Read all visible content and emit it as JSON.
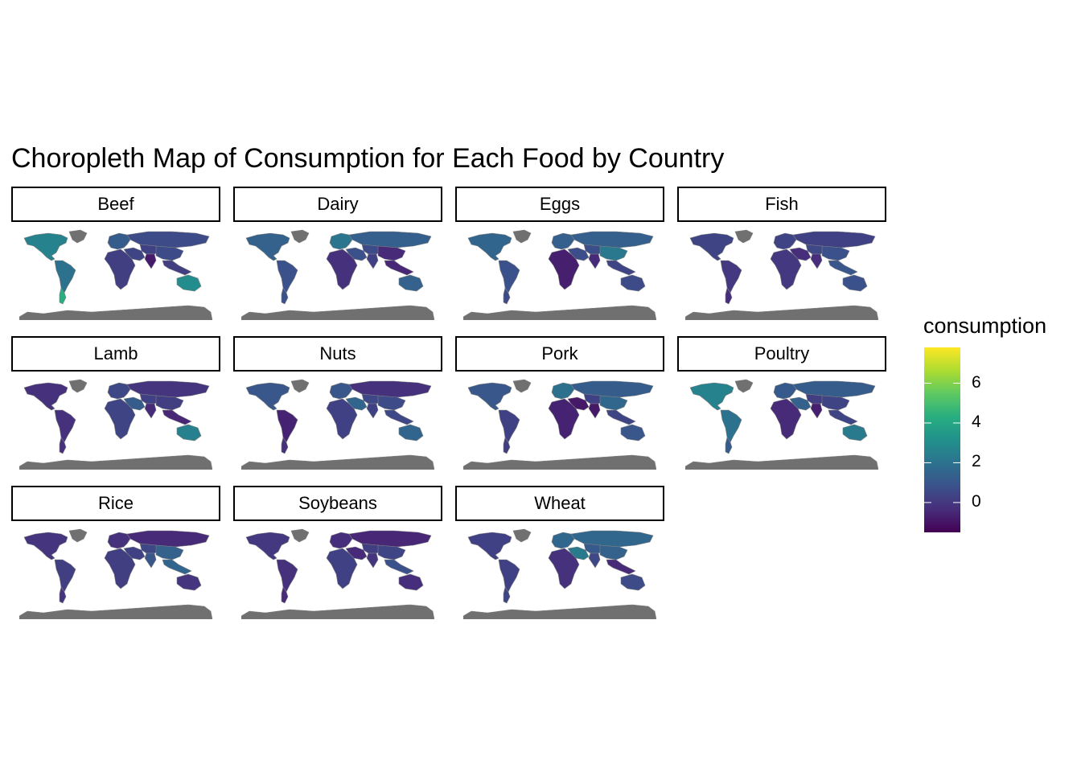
{
  "title": "Choropleth Map of Consumption for Each Food by Country",
  "chart_data": {
    "type": "choropleth-facet",
    "facets": [
      "Beef",
      "Dairy",
      "Eggs",
      "Fish",
      "Lamb",
      "Nuts",
      "Pork",
      "Poultry",
      "Rice",
      "Soybeans",
      "Wheat"
    ],
    "legend": {
      "title": "consumption",
      "ticks": [
        6,
        4,
        2,
        0
      ],
      "range": [
        -1.5,
        7.8
      ],
      "colors": [
        "#440154",
        "#472d7b",
        "#3b528b",
        "#2c728e",
        "#21918c",
        "#28ae80",
        "#5ec962",
        "#addc30",
        "#fde725"
      ]
    },
    "na_color": "#707070",
    "regions": {
      "Beef": {
        "north_america": 2.6,
        "south_america": 2.0,
        "argentina": 4.3,
        "europe": 1.2,
        "russia": 0.6,
        "africa": 0.2,
        "middle_east": 0.4,
        "asia": 0.3,
        "china": 0.6,
        "india": -0.8,
        "southeast_asia": 0.2,
        "australia": 3.0
      },
      "Dairy": {
        "north_america": 1.4,
        "south_america": 0.8,
        "argentina": 0.8,
        "europe": 2.1,
        "russia": 1.3,
        "africa": -0.2,
        "middle_east": 0.8,
        "asia": 0.6,
        "china": -0.4,
        "india": 0.3,
        "southeast_asia": -0.5,
        "australia": 1.4
      },
      "Eggs": {
        "north_america": 1.5,
        "south_america": 0.8,
        "argentina": 0.6,
        "europe": 1.3,
        "russia": 1.3,
        "africa": -0.7,
        "middle_east": 0.7,
        "asia": 0.7,
        "china": 2.2,
        "india": -0.4,
        "southeast_asia": 0.4,
        "australia": 0.6
      },
      "Fish": {
        "north_america": 0.4,
        "south_america": 0.0,
        "argentina": -0.3,
        "europe": 0.4,
        "russia": 0.3,
        "africa": 0.0,
        "middle_east": -0.3,
        "asia": 0.5,
        "china": 0.8,
        "india": -0.3,
        "southeast_asia": 1.0,
        "australia": 0.8
      },
      "Lamb": {
        "north_america": -0.2,
        "south_america": -0.2,
        "argentina": -0.2,
        "europe": 0.5,
        "russia": -0.1,
        "africa": 0.4,
        "middle_east": 1.2,
        "asia": 0.3,
        "china": 0.2,
        "india": -0.4,
        "southeast_asia": -0.5,
        "australia": 2.5
      },
      "Nuts": {
        "north_america": 1.0,
        "south_america": -0.6,
        "argentina": -0.2,
        "europe": 1.0,
        "russia": -0.2,
        "africa": 0.3,
        "middle_east": 1.5,
        "asia": 0.5,
        "china": 0.6,
        "india": 0.3,
        "southeast_asia": 0.5,
        "australia": 1.5
      },
      "Pork": {
        "north_america": 1.0,
        "south_america": 0.3,
        "argentina": 0.2,
        "europe": 1.9,
        "russia": 1.2,
        "africa": -0.6,
        "middle_east": -0.9,
        "asia": 0.3,
        "china": 1.6,
        "india": -0.9,
        "southeast_asia": 0.4,
        "australia": 1.0
      },
      "Poultry": {
        "north_america": 2.6,
        "south_america": 2.0,
        "argentina": 1.2,
        "europe": 1.1,
        "russia": 1.2,
        "africa": -0.4,
        "middle_east": 1.4,
        "asia": 0.2,
        "china": 0.4,
        "india": -0.7,
        "southeast_asia": 0.4,
        "australia": 2.3
      },
      "Rice": {
        "north_america": -0.1,
        "south_america": 0.2,
        "argentina": -0.1,
        "europe": -0.2,
        "russia": -0.4,
        "africa": 0.2,
        "middle_east": 0.3,
        "asia": 0.5,
        "china": 1.4,
        "india": 1.0,
        "southeast_asia": 1.5,
        "australia": -0.1
      },
      "Soybeans": {
        "north_america": 0.0,
        "south_america": -0.2,
        "argentina": -0.4,
        "europe": -0.3,
        "russia": -0.5,
        "africa": 0.3,
        "middle_east": -0.4,
        "asia": 0.2,
        "china": 0.4,
        "india": -0.1,
        "southeast_asia": 0.8,
        "australia": -0.3
      },
      "Wheat": {
        "north_america": 0.3,
        "south_america": 0.3,
        "argentina": 0.4,
        "europe": 1.6,
        "russia": 1.6,
        "africa": -0.2,
        "middle_east": 2.3,
        "asia": 1.1,
        "china": 1.4,
        "india": 0.5,
        "southeast_asia": -0.4,
        "australia": 0.6
      }
    }
  }
}
